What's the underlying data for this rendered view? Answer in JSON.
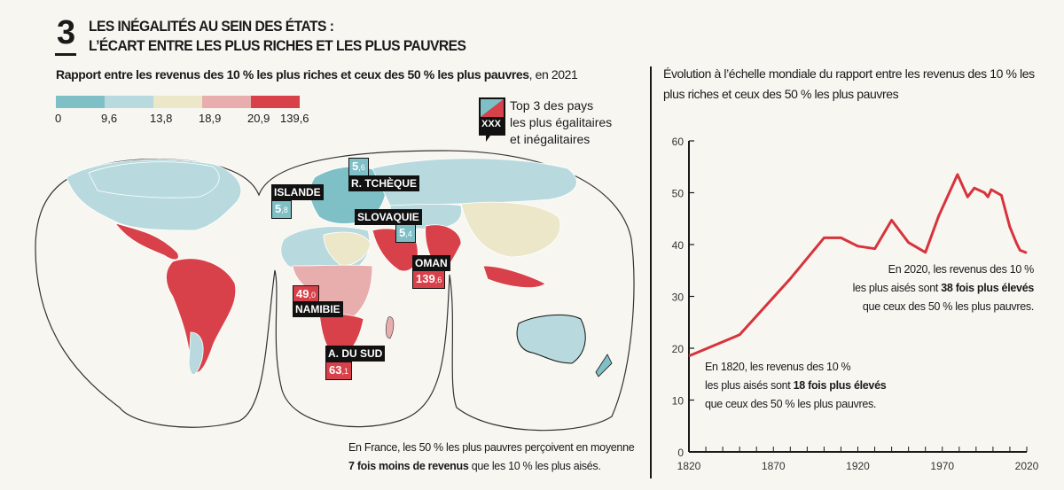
{
  "header": {
    "number": "3",
    "title_line1": "LES INÉGALITÉS AU SEIN DES ÉTATS :",
    "title_line2": "L’ÉCART ENTRE LES PLUS RICHES ET LES PLUS PAUVRES"
  },
  "map": {
    "subtitle": "Rapport entre les revenus des 10 % les plus riches et ceux des 50 % les plus pauvres",
    "subtitle_year": ", en 2021",
    "legend": {
      "bins": [
        {
          "from": "0",
          "color": "#7fbfc6"
        },
        {
          "from": "9,6",
          "color": "#b8dade"
        },
        {
          "from": "13,8",
          "color": "#ece7c9"
        },
        {
          "from": "18,9",
          "color": "#e8aeae"
        },
        {
          "from": "20,9",
          "color": "#d8414a"
        }
      ],
      "max": "139,6",
      "icon_text": "XXX",
      "key_text_1": "Top 3 des pays",
      "key_text_2": "les plus égalitaires",
      "key_text_3": "et inégalitaires"
    },
    "callouts": {
      "czech": {
        "name": "R. TCHÈQUE",
        "int": "5",
        "dec": ",6"
      },
      "iceland": {
        "name": "ISLANDE",
        "int": "5",
        "dec": ",8"
      },
      "slovakia": {
        "name": "SLOVAQUIE",
        "int": "5",
        "dec": ",4"
      },
      "oman": {
        "name": "OMAN",
        "int": "139",
        "dec": ",6"
      },
      "namibia": {
        "name": "NAMIBIE",
        "int": "49",
        "dec": ",0"
      },
      "south_africa": {
        "name": "A. DU SUD",
        "int": "63",
        "dec": ",1"
      }
    },
    "note_line1": "En France, les 50 % les plus pauvres perçoivent en moyenne",
    "note_bold": "7 fois moins de revenus",
    "note_line2_rest": " que les 10 % les plus aisés."
  },
  "chart_data": {
    "type": "line",
    "title": "Évolution à l’échelle mondiale du rapport entre les revenus des 10 % les plus riches et ceux des 50 % les plus pauvres",
    "xlim": [
      1820,
      2020
    ],
    "ylim": [
      0,
      60
    ],
    "xticks": [
      1820,
      1870,
      1920,
      1970,
      2020
    ],
    "yticks": [
      0,
      10,
      20,
      30,
      40,
      50,
      60
    ],
    "grid": false,
    "color": "#d8333c",
    "x": [
      1820,
      1850,
      1880,
      1900,
      1910,
      1920,
      1930,
      1940,
      1950,
      1960,
      1968,
      1979,
      1985,
      1989,
      1995,
      1997,
      1999,
      2005,
      2010,
      2014,
      2016,
      2020
    ],
    "y": [
      18.5,
      22.6,
      33.4,
      41.3,
      41.3,
      39.7,
      39.2,
      44.7,
      40.4,
      38.5,
      45.6,
      53.5,
      49.2,
      50.9,
      50.0,
      49.2,
      50.6,
      49.5,
      43.4,
      40.2,
      38.9,
      38.4
    ],
    "annotations": {
      "a2020": {
        "l1": "En 2020, les revenus des 10 %",
        "l2a": "les plus aisés sont ",
        "l2b": "38 fois plus élevés",
        "l3": "que ceux des 50 % les plus pauvres."
      },
      "a1820": {
        "l1": "En 1820, les revenus des 10 %",
        "l2a": "les plus aisés sont ",
        "l2b": "18 fois plus élevés",
        "l3": "que ceux des 50 % les plus pauvres."
      }
    }
  }
}
